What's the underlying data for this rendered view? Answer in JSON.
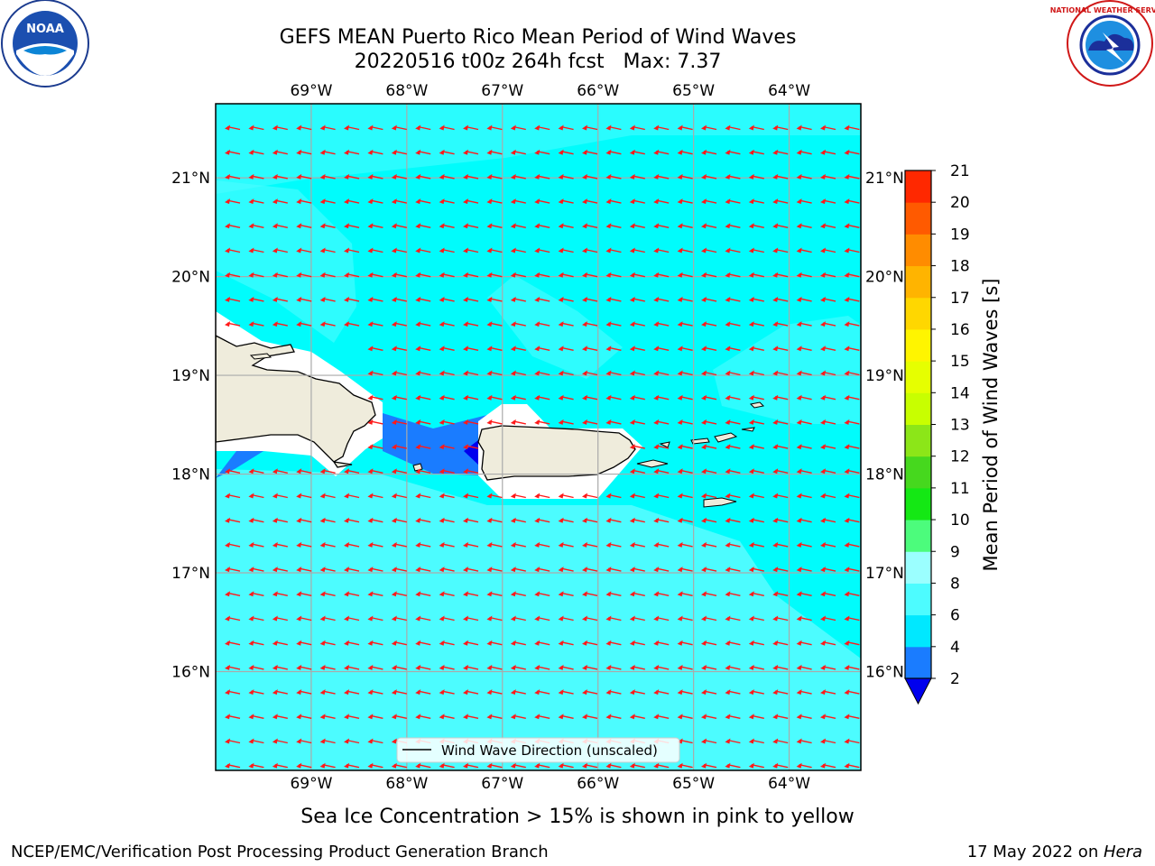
{
  "title": {
    "line1": "GEFS MEAN Puerto Rico Mean Period of Wind Waves",
    "line2": "20220516 t00z 264h fcst   Max: 7.37"
  },
  "map": {
    "lon_labels": [
      "69°W",
      "68°W",
      "67°W",
      "66°W",
      "65°W",
      "64°W"
    ],
    "lat_labels": [
      "21°N",
      "20°N",
      "19°N",
      "18°N",
      "17°N",
      "16°N"
    ],
    "lon_range": [
      -70.0,
      -63.25
    ],
    "lat_range": [
      15.0,
      21.75
    ],
    "background_color": "#00ffff",
    "land_color": "#efecdc",
    "arrow_color": "#ff1a1a",
    "legend_label": "Wind Wave Direction (unscaled)"
  },
  "colorbar": {
    "label": "Mean Period of Wind Waves [s]",
    "ticks": [
      "2",
      "4",
      "6",
      "8",
      "9",
      "10",
      "11",
      "12",
      "13",
      "14",
      "15",
      "16",
      "17",
      "18",
      "19",
      "20",
      "21"
    ],
    "colors": [
      "#1a7cff",
      "#00e8ff",
      "#4dfcff",
      "#9bffff",
      "#4cfc7c",
      "#14e814",
      "#46d81e",
      "#8ce618",
      "#c8ff00",
      "#e6ff00",
      "#fff500",
      "#ffd700",
      "#ffb400",
      "#ff8c00",
      "#ff5a00",
      "#ff2800"
    ],
    "under_color": "#0000ee",
    "over_color": "#ff0000"
  },
  "footer": {
    "sea_ice_note": "Sea Ice Concentration > 15% is shown in pink to yellow",
    "branch": "NCEP/EMC/Verification Post Processing Product Generation Branch",
    "date": "17 May 2022 on ",
    "machine": "Hera"
  },
  "logos": {
    "noaa_text": "NOAA",
    "nws_text": "NATIONAL WEATHER SERVICE"
  }
}
